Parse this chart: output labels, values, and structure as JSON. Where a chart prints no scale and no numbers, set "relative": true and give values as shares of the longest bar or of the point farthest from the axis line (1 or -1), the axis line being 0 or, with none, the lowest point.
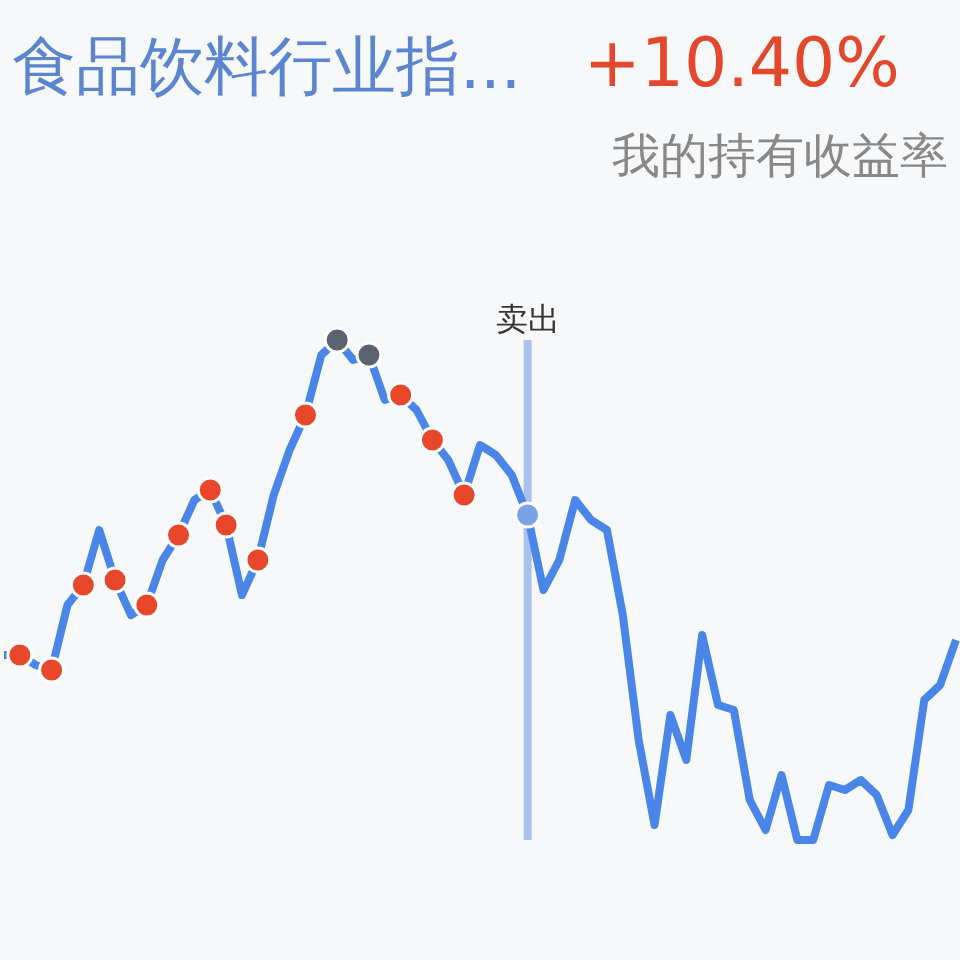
{
  "chart_data": {
    "type": "line",
    "relative": true,
    "title": "食品饮料行业指...",
    "annotations": [
      "+10.40%",
      "我的持有收益率",
      "卖出"
    ],
    "categories": [
      null,
      null,
      null,
      null,
      null,
      null,
      null,
      null,
      null,
      null,
      null,
      null,
      null,
      null,
      null,
      null,
      null,
      null,
      null,
      null,
      null,
      null,
      null,
      null,
      null,
      null,
      null,
      null,
      null,
      null,
      null,
      null,
      null,
      null,
      null,
      null,
      null,
      null,
      null,
      null,
      null,
      null,
      null,
      null,
      null,
      null,
      null,
      null,
      null,
      null,
      null,
      null,
      null,
      null,
      null,
      null,
      null,
      null,
      null,
      null,
      null
    ],
    "series": [
      {
        "color": "#4a86e8",
        "values": [
          0.37,
          0.37,
          0.35,
          0.34,
          0.47,
          0.51,
          0.62,
          0.52,
          0.45,
          0.47,
          0.56,
          0.61,
          0.68,
          0.7,
          0.63,
          0.49,
          0.56,
          0.69,
          0.78,
          0.85,
          0.97,
          1,
          0.96,
          0.97,
          0.88,
          0.89,
          0.86,
          0.8,
          0.76,
          0.69,
          0.79,
          0.77,
          0.73,
          0.65,
          0.5,
          0.56,
          0.68,
          0.64,
          0.62,
          0.45,
          0.2,
          0.03,
          0.25,
          0.16,
          0.41,
          0.27,
          0.26,
          0.08,
          0.02,
          0.13,
          0,
          0,
          0.11,
          0.1,
          0.12,
          0.09,
          0.01,
          0.06,
          0.28,
          0.31,
          0.4
        ],
        "colors": [
          null,
          "#e8472b",
          null,
          "#e8472b",
          null,
          "#e8472b",
          null,
          "#e8472b",
          null,
          "#e8472b",
          null,
          "#e8472b",
          null,
          "#e8472b",
          "#e8472b",
          null,
          "#e8472b",
          null,
          null,
          "#e8472b",
          null,
          "#5b6270",
          null,
          "#5b6270",
          null,
          "#e8472b",
          null,
          "#e8472b",
          null,
          "#e8472b",
          null,
          null,
          null,
          "#7aa3e6",
          null,
          null,
          null,
          null,
          null,
          null,
          null,
          null,
          null,
          null,
          null,
          null,
          null,
          null,
          null,
          null,
          null,
          null,
          null,
          null,
          null,
          null,
          null,
          null,
          null,
          null,
          null
        ]
      }
    ],
    "legend": false,
    "grid": false
  }
}
